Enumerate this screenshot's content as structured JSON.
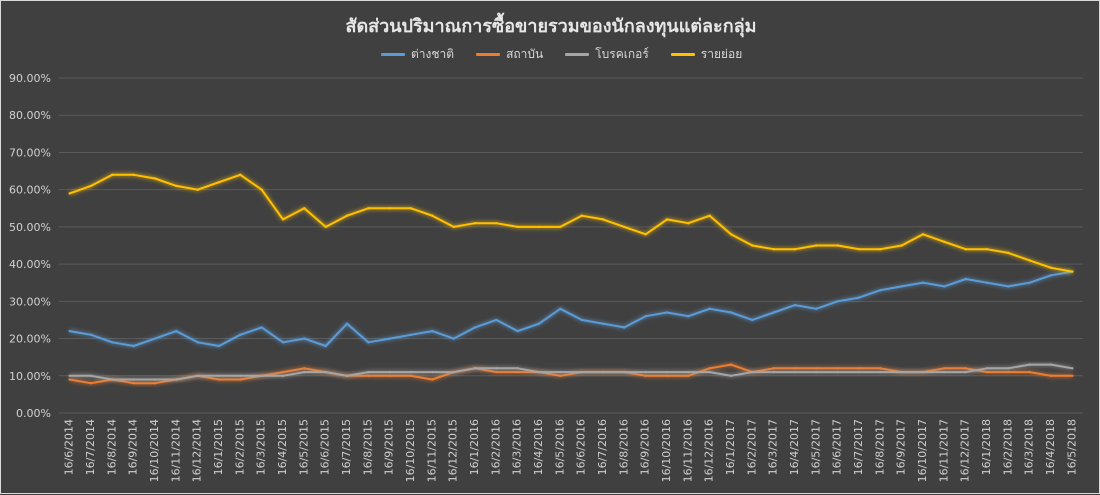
{
  "chart_data": {
    "type": "line",
    "title": "สัดส่วนปริมาณการซื้อขายรวมของนักลงทุนแต่ละกลุ่ม",
    "xlabel": "",
    "ylabel": "",
    "ylim": [
      0,
      90
    ],
    "y_ticks": [
      "0.00%",
      "10.00%",
      "20.00%",
      "30.00%",
      "40.00%",
      "50.00%",
      "60.00%",
      "70.00%",
      "80.00%",
      "90.00%"
    ],
    "x_ticks": [
      "16/6/2014",
      "16/7/2014",
      "16/8/2014",
      "16/9/2014",
      "16/10/2014",
      "16/11/2014",
      "16/12/2014",
      "16/1/2015",
      "16/2/2015",
      "16/3/2015",
      "16/4/2015",
      "16/5/2015",
      "16/6/2015",
      "16/7/2015",
      "16/8/2015",
      "16/9/2015",
      "16/10/2015",
      "16/11/2015",
      "16/12/2015",
      "16/1/2016",
      "16/2/2016",
      "16/3/2016",
      "16/4/2016",
      "16/5/2016",
      "16/6/2016",
      "16/7/2016",
      "16/8/2016",
      "16/9/2016",
      "16/10/2016",
      "16/11/2016",
      "16/12/2016",
      "16/1/2017",
      "16/2/2017",
      "16/3/2017",
      "16/4/2017",
      "16/5/2017",
      "16/6/2017",
      "16/7/2017",
      "16/8/2017",
      "16/9/2017",
      "16/10/2017",
      "16/11/2017",
      "16/12/2017",
      "16/1/2018",
      "16/2/2018",
      "16/3/2018",
      "16/4/2018",
      "16/5/2018"
    ],
    "legend_position": "top",
    "grid": true,
    "series": [
      {
        "name": "ต่างชาติ",
        "color": "#5b9bd5",
        "values": [
          22,
          21,
          19,
          18,
          20,
          22,
          19,
          18,
          21,
          23,
          19,
          20,
          18,
          24,
          19,
          20,
          21,
          22,
          20,
          23,
          25,
          22,
          24,
          28,
          25,
          24,
          23,
          26,
          27,
          26,
          28,
          27,
          25,
          27,
          29,
          28,
          30,
          31,
          33,
          34,
          35,
          34,
          36,
          35,
          34,
          35,
          37,
          38
        ]
      },
      {
        "name": "สถาบัน",
        "color": "#ed7d31",
        "values": [
          9,
          8,
          9,
          8,
          8,
          9,
          10,
          9,
          9,
          10,
          11,
          12,
          11,
          10,
          10,
          10,
          10,
          9,
          11,
          12,
          11,
          11,
          11,
          10,
          11,
          11,
          11,
          10,
          10,
          10,
          12,
          13,
          11,
          12,
          12,
          12,
          12,
          12,
          12,
          11,
          11,
          12,
          12,
          11,
          11,
          11,
          10,
          10
        ]
      },
      {
        "name": "โบรคเกอร์",
        "color": "#a5a5a5",
        "values": [
          10,
          10,
          9,
          9,
          9,
          9,
          10,
          10,
          10,
          10,
          10,
          11,
          11,
          10,
          11,
          11,
          11,
          11,
          11,
          12,
          12,
          12,
          11,
          11,
          11,
          11,
          11,
          11,
          11,
          11,
          11,
          10,
          11,
          11,
          11,
          11,
          11,
          11,
          11,
          11,
          11,
          11,
          11,
          12,
          12,
          13,
          13,
          12
        ]
      },
      {
        "name": "รายย่อย",
        "color": "#ffc000",
        "values": [
          59,
          61,
          64,
          64,
          63,
          61,
          60,
          62,
          64,
          60,
          52,
          55,
          50,
          53,
          55,
          55,
          55,
          53,
          50,
          51,
          51,
          50,
          50,
          50,
          53,
          52,
          50,
          48,
          52,
          51,
          53,
          48,
          45,
          44,
          44,
          45,
          45,
          44,
          44,
          45,
          48,
          46,
          44,
          44,
          43,
          41,
          39,
          38
        ]
      }
    ]
  }
}
